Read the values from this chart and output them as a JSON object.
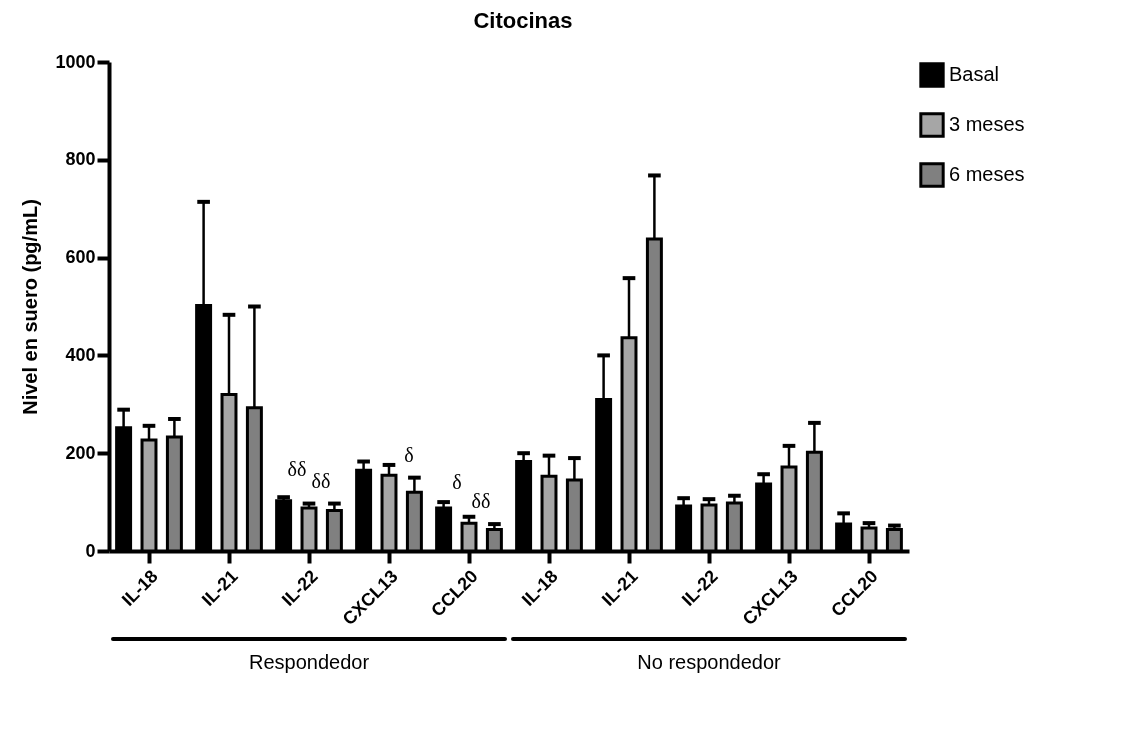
{
  "chart_data": {
    "type": "bar",
    "title": "Citocinas",
    "ylabel": "Nivel en suero (pg/mL)",
    "categories": [
      "IL-18",
      "IL-21",
      "IL-22",
      "CXCL13",
      "CCL20",
      "IL-18",
      "IL-21",
      "IL-22",
      "CXCL13",
      "CCL20"
    ],
    "series": [
      {
        "name": "Basal",
        "color": "#000000",
        "values": [
          252,
          502,
          103,
          165,
          88,
          183,
          310,
          92,
          137,
          55
        ],
        "errors": [
          [
            252,
            289
          ],
          [
            502,
            714
          ],
          [
            103,
            110
          ],
          [
            165,
            183
          ],
          [
            88,
            100
          ],
          [
            183,
            200
          ],
          [
            310,
            400
          ],
          [
            92,
            108
          ],
          [
            137,
            157
          ],
          [
            55,
            77
          ]
        ]
      },
      {
        "name": "3 meses",
        "color": "#a6a6a6",
        "values": [
          227,
          320,
          88,
          155,
          57,
          153,
          436,
          94,
          172,
          47
        ],
        "errors": [
          [
            227,
            256
          ],
          [
            320,
            483
          ],
          [
            88,
            97
          ],
          [
            155,
            176
          ],
          [
            57,
            70
          ],
          [
            153,
            195
          ],
          [
            436,
            558
          ],
          [
            94,
            106
          ],
          [
            172,
            215
          ],
          [
            47,
            57
          ]
        ]
      },
      {
        "name": "6 meses",
        "color": "#808080",
        "values": [
          233,
          293,
          83,
          120,
          44,
          145,
          638,
          98,
          202,
          44
        ],
        "errors": [
          [
            233,
            270
          ],
          [
            293,
            500
          ],
          [
            83,
            97
          ],
          [
            120,
            150
          ],
          [
            44,
            55
          ],
          [
            145,
            190
          ],
          [
            638,
            768
          ],
          [
            98,
            113
          ],
          [
            202,
            262
          ],
          [
            44,
            52
          ]
        ]
      }
    ],
    "ylim": [
      0,
      1000
    ],
    "yticks": [
      0,
      200,
      400,
      600,
      800,
      1000
    ],
    "grid": false,
    "legend": "top right",
    "annotations": [
      {
        "text": "δδ",
        "x": "IL-22",
        "y": 97
      },
      {
        "text": "δδ",
        "x": "IL-22",
        "y": 97
      },
      {
        "text": "δ",
        "x": "CXCL13",
        "y": 150
      },
      {
        "text": "δ",
        "x": "CCL20",
        "y": 70
      },
      {
        "text": "δδ",
        "x": "CCL20",
        "y": 55
      },
      "Respondedor",
      "No respondedor"
    ]
  }
}
